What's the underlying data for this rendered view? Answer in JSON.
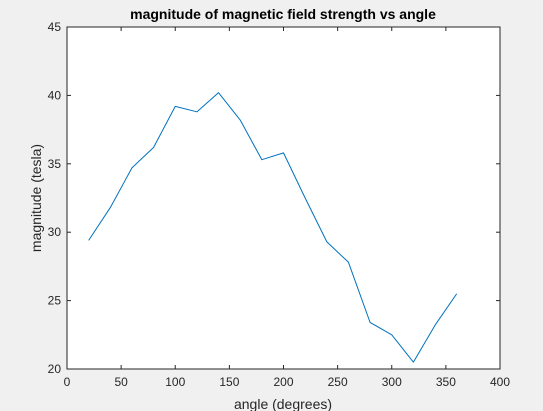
{
  "figure": {
    "background": "#f0f0f0"
  },
  "chart_data": {
    "type": "line",
    "title": "magnitude of magnetic field strength vs angle",
    "xlabel": "angle (degrees)",
    "ylabel": "magnitude (tesla)",
    "xlim": [
      0,
      400
    ],
    "ylim": [
      20,
      45
    ],
    "xticks": [
      0,
      50,
      100,
      150,
      200,
      250,
      300,
      350,
      400
    ],
    "yticks": [
      20,
      25,
      30,
      35,
      40,
      45
    ],
    "grid": false,
    "legend": "none",
    "series": [
      {
        "color": "#0072bd",
        "x": [
          20,
          40,
          60,
          80,
          100,
          120,
          140,
          160,
          180,
          200,
          220,
          240,
          260,
          280,
          300,
          320,
          340,
          360
        ],
        "y": [
          29.4,
          31.8,
          34.7,
          36.2,
          39.2,
          38.8,
          40.2,
          38.2,
          35.3,
          35.8,
          32.5,
          29.3,
          27.8,
          23.4,
          22.5,
          20.5,
          23.2,
          25.5
        ]
      }
    ]
  }
}
